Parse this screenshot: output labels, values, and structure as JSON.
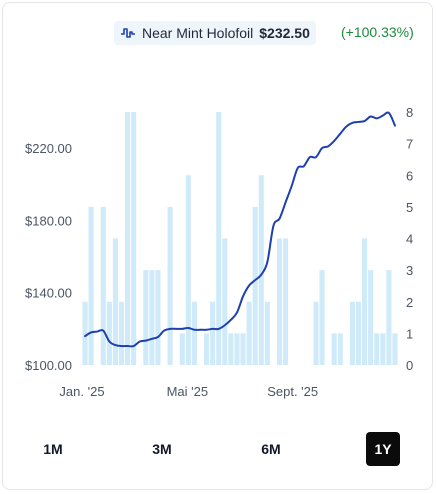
{
  "legend": {
    "icon": "trend-line-icon",
    "series_name": "Near Mint Holofoil",
    "price": "$232.50",
    "change": "(+100.33%)"
  },
  "colors": {
    "line": "#1e40af",
    "bars": "#cfeaf8",
    "change": "#1f8a3b",
    "active_button": "#0b0b0b"
  },
  "ranges": [
    "1M",
    "3M",
    "6M",
    "1Y"
  ],
  "active_range": "1Y",
  "chart_data": {
    "type": "line",
    "x_tick_labels": [
      "Jan. '25",
      "Mai '25",
      "Sept. '25"
    ],
    "y_left": {
      "ticks": [
        "$100.00",
        "$140.00",
        "$180.00",
        "$220.00"
      ],
      "values": [
        100,
        140,
        180,
        220
      ],
      "range": [
        100,
        240
      ]
    },
    "y_right": {
      "ticks": [
        "0",
        "1",
        "2",
        "3",
        "4",
        "5",
        "6",
        "7",
        "8"
      ],
      "values": [
        0,
        1,
        2,
        3,
        4,
        5,
        6,
        7,
        8
      ],
      "range": [
        0,
        8
      ]
    },
    "grid": false,
    "series": [
      {
        "name": "Near Mint Holofoil",
        "kind": "line",
        "axis": "left",
        "values": [
          116,
          118,
          118.5,
          119,
          113,
          111,
          110.5,
          110.5,
          110.5,
          113,
          113.5,
          114.5,
          115.5,
          119,
          120,
          120,
          120,
          120.5,
          119.5,
          119.5,
          119.5,
          120,
          120,
          122,
          125,
          129,
          138,
          144,
          147,
          150,
          157,
          177,
          181,
          190,
          199,
          209,
          210,
          215,
          215,
          220,
          221,
          224,
          228,
          232,
          234,
          234.5,
          235,
          237.5,
          236.5,
          238,
          239.5,
          232.5
        ]
      },
      {
        "name": "Volume",
        "kind": "bar",
        "axis": "right",
        "values": [
          2,
          5,
          0,
          5,
          2,
          4,
          2,
          8,
          8,
          0,
          3,
          3,
          3,
          0,
          5,
          0,
          1,
          6,
          2,
          0,
          1,
          2,
          8,
          4,
          1,
          1,
          1,
          2,
          5,
          6,
          2,
          0,
          4,
          4,
          0,
          0,
          0,
          0,
          2,
          3,
          0,
          1,
          1,
          0,
          2,
          2,
          4,
          3,
          1,
          1,
          3,
          1
        ]
      }
    ]
  }
}
